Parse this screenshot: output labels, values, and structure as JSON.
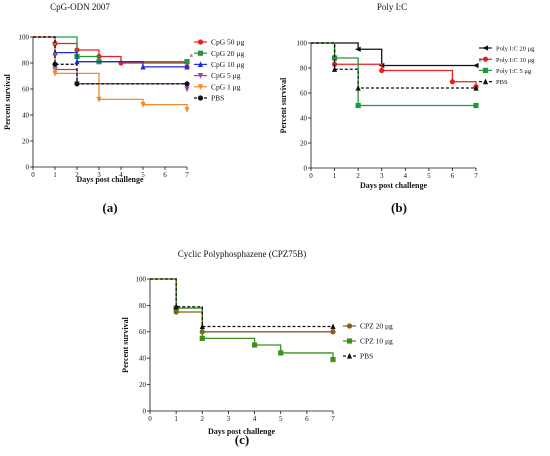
{
  "colors": {
    "red": "#e8201f",
    "green": "#1e9a3a",
    "blue": "#1f2fd6",
    "purple": "#a83ab0",
    "orange": "#f4892a",
    "black": "#111111",
    "brown": "#8b5a1a",
    "darkgreen": "#3f8f1e"
  },
  "chart_data": [
    {
      "type": "line",
      "title": "CpG-ODN 2007",
      "xlabel": "Days post challenge",
      "ylabel": "Percent survival",
      "xlim": [
        0,
        7
      ],
      "ylim": [
        0,
        100
      ],
      "xticks": [
        "0",
        "1",
        "2",
        "3",
        "4",
        "5",
        "6",
        "7"
      ],
      "yticks": [
        "0",
        "20",
        "40",
        "60",
        "80",
        "100"
      ],
      "panel_label": "(a)",
      "annotation": "a",
      "legend_position": "right",
      "series": [
        {
          "name": "CpG 50 μg",
          "color": "red",
          "marker": "circle",
          "dash": false,
          "x": [
            0,
            1,
            2,
            3,
            4,
            7
          ],
          "y": [
            100,
            95,
            90,
            85,
            80,
            77
          ]
        },
        {
          "name": "CpG 20 μg",
          "color": "green",
          "marker": "square",
          "dash": false,
          "x": [
            0,
            2,
            3,
            7
          ],
          "y": [
            100,
            85,
            81,
            81
          ]
        },
        {
          "name": "CpG 10 μg",
          "color": "blue",
          "marker": "triangle",
          "dash": false,
          "x": [
            0,
            1,
            2,
            5,
            7
          ],
          "y": [
            100,
            88,
            81,
            77,
            77
          ]
        },
        {
          "name": "CpG 5 μg",
          "color": "purple",
          "marker": "triangle-down",
          "dash": false,
          "x": [
            0,
            1,
            2,
            7
          ],
          "y": [
            100,
            75,
            64,
            60
          ]
        },
        {
          "name": "CpG 1 μg",
          "color": "orange",
          "marker": "triangle-down",
          "dash": false,
          "x": [
            0,
            1,
            3,
            5,
            7
          ],
          "y": [
            100,
            72,
            52,
            48,
            44
          ]
        },
        {
          "name": "PBS",
          "color": "black",
          "marker": "circle",
          "dash": true,
          "x": [
            0,
            1,
            2,
            7
          ],
          "y": [
            100,
            79,
            64,
            64
          ]
        }
      ]
    },
    {
      "type": "line",
      "title": "Poly I:C",
      "xlabel": "Days post challenge",
      "ylabel": "Percent survival",
      "xlim": [
        0,
        7
      ],
      "ylim": [
        0,
        100
      ],
      "xticks": [
        "0",
        "1",
        "2",
        "3",
        "4",
        "5",
        "6",
        "7"
      ],
      "yticks": [
        "0",
        "20",
        "40",
        "60",
        "80",
        "100"
      ],
      "panel_label": "(b)",
      "annotation": "a",
      "legend_position": "right",
      "series": [
        {
          "name": "Poly I:C 20 μg",
          "color": "black",
          "marker": "triangle-left",
          "dash": false,
          "x": [
            0,
            2,
            3,
            7
          ],
          "y": [
            100,
            95,
            82,
            82
          ]
        },
        {
          "name": "Poly I:C 10 μg",
          "color": "red",
          "marker": "circle",
          "dash": false,
          "x": [
            0,
            1,
            3,
            6,
            7
          ],
          "y": [
            100,
            83,
            78,
            69,
            65
          ]
        },
        {
          "name": "Poly I:C 5 μg",
          "color": "green",
          "marker": "square",
          "dash": false,
          "x": [
            0,
            1,
            2,
            7
          ],
          "y": [
            100,
            88,
            50,
            50
          ]
        },
        {
          "name": "PBS",
          "color": "black",
          "marker": "triangle",
          "dash": true,
          "x": [
            0,
            1,
            2,
            7
          ],
          "y": [
            100,
            79,
            64,
            64
          ]
        }
      ]
    },
    {
      "type": "line",
      "title": "Cyclic Polyphosphazene (CPZ75B)",
      "xlabel": "Days post challenge",
      "ylabel": "Percent survival",
      "xlim": [
        0,
        7
      ],
      "ylim": [
        0,
        100
      ],
      "xticks": [
        "0",
        "1",
        "2",
        "3",
        "4",
        "5",
        "6",
        "7"
      ],
      "yticks": [
        "0",
        "20",
        "40",
        "60",
        "80",
        "100"
      ],
      "panel_label": "(c)",
      "legend_position": "right",
      "series": [
        {
          "name": "CPZ 20 μg",
          "color": "brown",
          "marker": "circle",
          "dash": false,
          "x": [
            0,
            1,
            2,
            7
          ],
          "y": [
            100,
            75,
            60,
            60
          ]
        },
        {
          "name": "CPZ 10 μg",
          "color": "darkgreen",
          "marker": "square",
          "dash": false,
          "x": [
            0,
            1,
            2,
            4,
            5,
            7
          ],
          "y": [
            100,
            78,
            55,
            50,
            44,
            39
          ]
        },
        {
          "name": "PBS",
          "color": "black",
          "marker": "triangle",
          "dash": true,
          "x": [
            0,
            1,
            2,
            7
          ],
          "y": [
            100,
            79,
            64,
            64
          ]
        }
      ]
    }
  ]
}
